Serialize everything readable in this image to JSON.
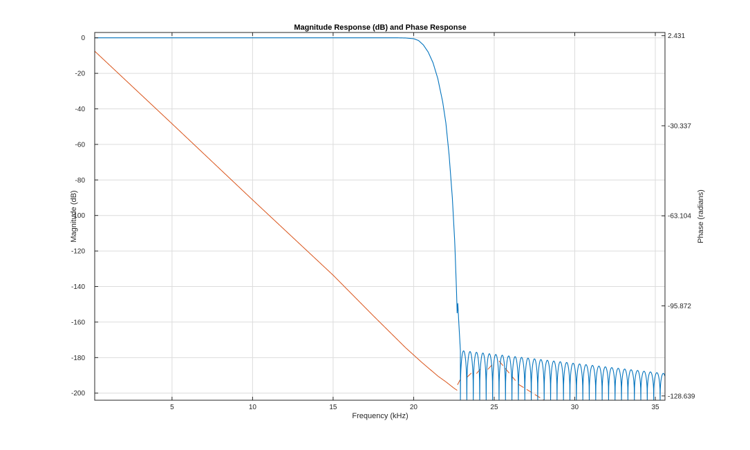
{
  "chart_data": {
    "type": "line",
    "title": "Magnitude Response (dB) and Phase Response",
    "xlabel": "Frequency (kHz)",
    "ylabel": "Magnitude (dB)",
    "y2label": "Phase (radians)",
    "xlim": [
      0.2,
      35.6
    ],
    "ylim": [
      -204,
      3
    ],
    "y2lim": [
      -130.2,
      3.6
    ],
    "xticks": [
      5,
      10,
      15,
      20,
      25,
      30,
      35
    ],
    "yticks": [
      0,
      -20,
      -40,
      -60,
      -80,
      -100,
      -120,
      -140,
      -160,
      -180,
      -200
    ],
    "y2ticks": [
      2.431,
      -30.337,
      -63.104,
      -95.872,
      -128.639
    ],
    "y2ticklabels": [
      "2.431",
      "-30.337",
      "-63.104",
      "-95.872",
      "-128.639"
    ],
    "grid": true,
    "legend": "none",
    "colors": {
      "magnitude": "#0072bd",
      "phase": "#d95319",
      "grid": "#dcdcdc",
      "axis": "#262626"
    },
    "series": [
      {
        "axis": "left",
        "color": "#0072bd",
        "x": [
          0.2,
          5,
          10,
          15,
          19.0,
          19.5,
          20.0,
          20.3,
          20.6,
          20.9,
          21.2,
          21.5,
          21.8,
          22.0,
          22.2,
          22.4,
          22.55,
          22.65,
          22.7,
          22.75
        ],
        "values": [
          0,
          0,
          0,
          0,
          0,
          -0.1,
          -0.5,
          -1.5,
          -4,
          -8,
          -14,
          -23,
          -36,
          -48,
          -66,
          -90,
          -115,
          -140,
          -155,
          -148
        ]
      },
      {
        "axis": "right",
        "color": "#d95319",
        "x": [
          0.2,
          5,
          10,
          15,
          17.5,
          19.5,
          20.5,
          21.5,
          22.0,
          22.5,
          22.7
        ],
        "values": [
          -3.2,
          -29.6,
          -57.3,
          -84.7,
          -99.5,
          -111.1,
          -116.4,
          -121.4,
          -123.5,
          -125.8,
          -126.6
        ]
      }
    ],
    "stopband_ripple": {
      "x_start": 22.9,
      "x_end": 35.6,
      "period": 0.4,
      "peak_start": -176,
      "peak_end": -189,
      "floor": -204
    },
    "phase_wraps": [
      {
        "x": [
          22.72,
          23.0
        ],
        "values": [
          -124.6,
          -121.5
        ]
      },
      {
        "x": [
          23.3,
          23.6
        ],
        "values": [
          -121.9,
          -120.2
        ]
      },
      {
        "x": [
          23.9,
          24.2
        ],
        "values": [
          -120.5,
          -118.4
        ]
      },
      {
        "x": [
          24.6,
          25.0
        ],
        "values": [
          -119.0,
          -116.5
        ]
      },
      {
        "x": [
          25.3,
          26.4
        ],
        "values": [
          -115.9,
          -123.6
        ]
      },
      {
        "x": [
          26.5,
          28.1
        ],
        "values": [
          -124.4,
          -130.2
        ]
      }
    ]
  }
}
